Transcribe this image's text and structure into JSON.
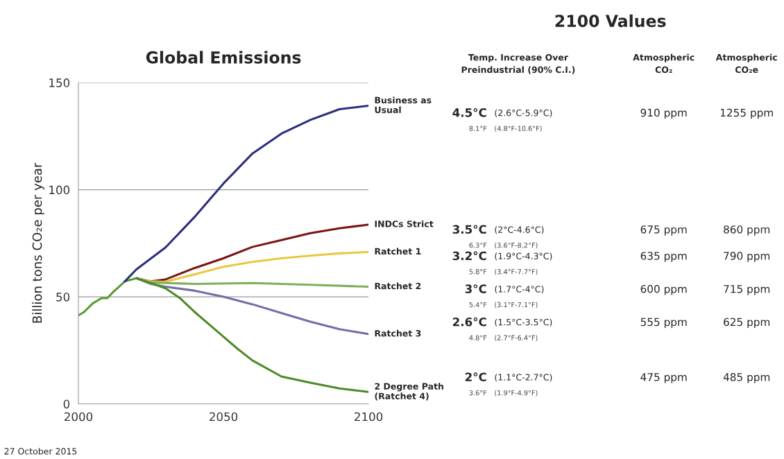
{
  "chart_data": [
    {
      "type": "line",
      "title": "Global Emissions",
      "ylabel": "Billion tons CO₂e per year",
      "xlim": [
        2000,
        2100
      ],
      "ylim": [
        0,
        150
      ],
      "xticks": [
        2000,
        2050,
        2100
      ],
      "yticks": [
        0,
        50,
        100,
        150
      ],
      "grid": "y",
      "legend": false,
      "annotations": [
        "27 October 2015"
      ],
      "series": [
        {
          "color": "#5a9a30",
          "x": [
            2000,
            2002,
            2005,
            2008,
            2010,
            2012,
            2014,
            2016,
            2020
          ],
          "values": [
            41.3,
            43,
            47,
            49.4,
            49.4,
            52.3,
            54.7,
            57.2,
            58.7
          ]
        },
        {
          "name": "Business as\nUsual",
          "color": "#2b2f7e",
          "x": [
            2016,
            2020,
            2030,
            2040,
            2050,
            2060,
            2070,
            2080,
            2090,
            2100
          ],
          "values": [
            57.2,
            62.8,
            73,
            87.2,
            102.9,
            116.9,
            126.2,
            132.6,
            137.6,
            139.2
          ]
        },
        {
          "name": "INDCs Strict",
          "color": "#7a1414",
          "x": [
            2020,
            2025,
            2030,
            2040,
            2050,
            2060,
            2070,
            2080,
            2090,
            2100
          ],
          "values": [
            58.7,
            57.2,
            58.1,
            63.4,
            68,
            73.3,
            76.5,
            79.7,
            82,
            83.7
          ]
        },
        {
          "name": "Ratchet 1",
          "color": "#e8c840",
          "x": [
            2020,
            2025,
            2030,
            2040,
            2050,
            2060,
            2070,
            2080,
            2090,
            2100
          ],
          "values": [
            58.7,
            57.2,
            57,
            60.5,
            64,
            66.3,
            68,
            69.2,
            70.3,
            70.9
          ]
        },
        {
          "name": "Ratchet 2",
          "color": "#7fae5a",
          "x": [
            2020,
            2025,
            2040,
            2060,
            2080,
            2100
          ],
          "values": [
            58.7,
            56.7,
            56,
            56.4,
            55.6,
            54.7
          ]
        },
        {
          "name": "Ratchet 3",
          "color": "#7070a8",
          "x": [
            2020,
            2025,
            2030,
            2040,
            2050,
            2060,
            2070,
            2080,
            2090,
            2100
          ],
          "values": [
            58.7,
            56,
            54.7,
            52.9,
            50,
            46.5,
            42.4,
            38.4,
            34.9,
            32.6
          ]
        },
        {
          "name": "2 Degree Path\n(Ratchet 4)",
          "color": "#4c8a2a",
          "x": [
            2020,
            2025,
            2030,
            2035,
            2040,
            2045,
            2050,
            2055,
            2060,
            2070,
            2080,
            2090,
            2100
          ],
          "values": [
            58.7,
            56.4,
            54,
            49.4,
            43,
            37.2,
            31.4,
            25.6,
            20.3,
            12.8,
            9.9,
            7.2,
            5.6
          ]
        }
      ]
    },
    {
      "type": "other",
      "title": "2100 Values",
      "categories": [
        "Temp. Increase Over\nPreindustrial (90% C.I.)",
        "Atmospheric\nCO₂",
        "Atmospheric\nCO₂e"
      ],
      "cell_labels": [
        [
          "4.5°C",
          "(2.6°C-5.9°C)",
          "8.1°F",
          "(4.8°F-10.6°F)",
          "910 ppm",
          "1255 ppm"
        ],
        [
          "3.5°C",
          "(2°C-4.6°C)",
          "6.3°F",
          "(3.6°F-8.2°F)",
          "675 ppm",
          "860 ppm"
        ],
        [
          "3.2°C",
          "(1.9°C-4.3°C)",
          "5.8°F",
          "(3.4°F-7.7°F)",
          "635 ppm",
          "790 ppm"
        ],
        [
          "3°C",
          "(1.7°C-4°C)",
          "5.4°F",
          "(3.1°F-7.1°F)",
          "600 ppm",
          "715 ppm"
        ],
        [
          "2.6°C",
          "(1.5°C-3.5°C)",
          "4.8°F",
          "(2.7°F-6.4°F)",
          "555 ppm",
          "625 ppm"
        ],
        [
          "2°C",
          "(1.1°C-2.7°C)",
          "3.6°F",
          "(1.9°F-4.9°F)",
          "475 ppm",
          "485 ppm"
        ]
      ]
    }
  ]
}
